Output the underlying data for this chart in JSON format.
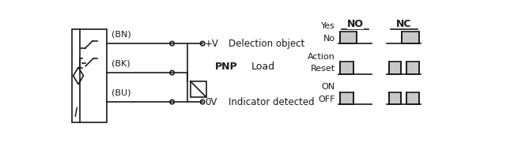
{
  "bg_color": "#ffffff",
  "line_color": "#1a1a1a",
  "waveform_fill": "#c8c8c8",
  "labels": {
    "bn": "(BN)",
    "bk": "(BK)",
    "bu": "(BU)",
    "pnp": "PNP",
    "load": "Load",
    "pv": "+V",
    "ov": "0V",
    "detection": "Delection object",
    "indicator": "Indicator detected",
    "I": "I"
  },
  "waveform_section": {
    "yes": "Yes",
    "no": "No",
    "NO": "NO",
    "NC": "NC",
    "action": "Action",
    "reset": "Reset",
    "on": "ON",
    "off": "OFF"
  },
  "figsize": [
    6.5,
    1.9
  ],
  "dpi": 100
}
